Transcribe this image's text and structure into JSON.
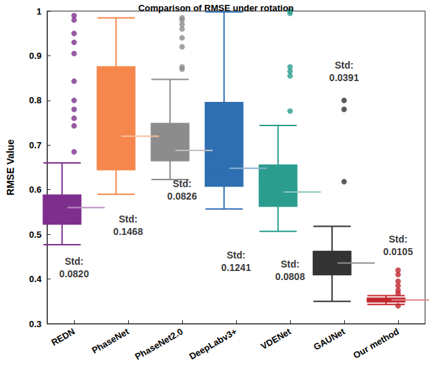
{
  "chart_data": {
    "type": "boxplot",
    "title": "Comparison of RMSE under rotation",
    "y_label": "RMSE Value",
    "categories": [
      "REDN",
      "PhaseNet",
      "PhaseNet2.0",
      "DeepLabv3+",
      "VDENet",
      "GAUNet",
      "Our method"
    ],
    "ylim": [
      0.3,
      1
    ],
    "yticks": [
      0.3,
      0.4,
      0.5,
      0.6,
      0.7,
      0.8,
      0.9,
      1
    ],
    "grid": false,
    "series": [
      {
        "name": "REDN",
        "color": "#7e2f8e",
        "min": 0.477,
        "q1": 0.523,
        "median": 0.56,
        "q3": 0.588,
        "max": 0.66,
        "outliers": [
          0.685,
          0.743,
          0.76,
          0.78,
          0.8,
          0.843,
          0.905,
          0.93,
          0.95,
          0.98,
          0.99
        ]
      },
      {
        "name": "PhaseNet",
        "color": "#f6874c",
        "min": 0.59,
        "q1": 0.645,
        "median": 0.72,
        "q3": 0.875,
        "max": 0.985,
        "outliers": []
      },
      {
        "name": "PhaseNet2.0",
        "color": "#8c8c8c",
        "min": 0.623,
        "q1": 0.665,
        "median": 0.688,
        "q3": 0.748,
        "max": 0.847,
        "outliers": [
          0.87,
          0.875,
          0.92,
          0.94,
          0.96,
          0.97,
          0.98,
          0.985
        ]
      },
      {
        "name": "DeepLabv3+",
        "color": "#2e6fb1",
        "min": 0.557,
        "q1": 0.608,
        "median": 0.648,
        "q3": 0.795,
        "max": 0.998,
        "outliers": []
      },
      {
        "name": "VDENet",
        "color": "#2a9d8f",
        "min": 0.507,
        "q1": 0.563,
        "median": 0.595,
        "q3": 0.655,
        "max": 0.744,
        "outliers": [
          0.776,
          0.855,
          0.865,
          0.875,
          0.995,
          1.0
        ]
      },
      {
        "name": "GAUNet",
        "color": "#333333",
        "min": 0.35,
        "q1": 0.41,
        "median": 0.436,
        "q3": 0.462,
        "max": 0.518,
        "outliers": [
          0.618,
          0.78,
          0.8
        ]
      },
      {
        "name": "Our method",
        "color": "#c1272d",
        "min": 0.343,
        "q1": 0.349,
        "median": 0.353,
        "q3": 0.357,
        "max": 0.363,
        "outliers": [
          0.34,
          0.368,
          0.375,
          0.385,
          0.395,
          0.41,
          0.42
        ]
      }
    ],
    "annotations": [
      {
        "category": "REDN",
        "y": 0.425,
        "text": "Std:\n0.0820"
      },
      {
        "category": "PhaseNet",
        "y": 0.52,
        "text": "Std:\n0.1468"
      },
      {
        "category": "PhaseNet2.0",
        "y": 0.6,
        "text": "Std:\n0.0826"
      },
      {
        "category": "DeepLabv3+",
        "y": 0.44,
        "text": "Std:\n0.1241"
      },
      {
        "category": "VDENet",
        "y": 0.42,
        "text": "Std:\n0.0808"
      },
      {
        "category": "GAUNet",
        "y": 0.865,
        "text": "Std:\n0.0391"
      },
      {
        "category": "Our method",
        "y": 0.475,
        "text": "Std:\n0.0105"
      }
    ]
  }
}
